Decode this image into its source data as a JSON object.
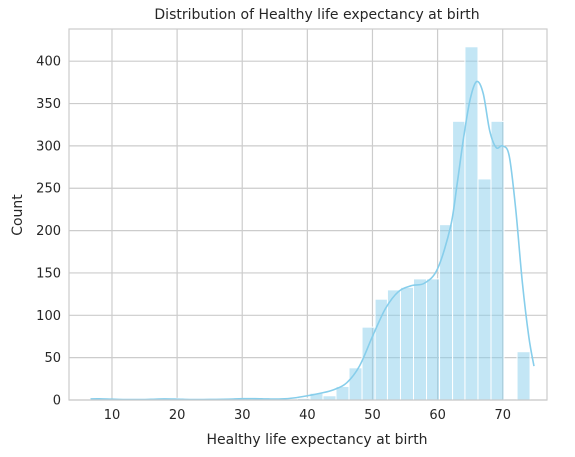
{
  "chart_data": {
    "type": "histogram",
    "title": "Distribution of Healthy life expectancy at birth",
    "xlabel": "Healthy life expectancy at birth",
    "ylabel": "Count",
    "xlim": [
      3.4,
      76.8
    ],
    "ylim": [
      0,
      438
    ],
    "x_ticks": [
      10,
      20,
      30,
      40,
      50,
      60,
      70
    ],
    "y_ticks": [
      0,
      50,
      100,
      150,
      200,
      250,
      300,
      350,
      400
    ],
    "grid": true,
    "bar_color": "#87ceeb",
    "kde_color": "#87ceeb",
    "bins": [
      {
        "x0": 6.7,
        "x1": 8.7,
        "count": 2
      },
      {
        "x0": 8.7,
        "x1": 10.7,
        "count": 0
      },
      {
        "x0": 10.7,
        "x1": 12.7,
        "count": 0
      },
      {
        "x0": 12.7,
        "x1": 14.6,
        "count": 0
      },
      {
        "x0": 14.6,
        "x1": 16.6,
        "count": 0
      },
      {
        "x0": 16.6,
        "x1": 18.6,
        "count": 1
      },
      {
        "x0": 18.6,
        "x1": 20.6,
        "count": 2
      },
      {
        "x0": 20.6,
        "x1": 22.6,
        "count": 0
      },
      {
        "x0": 22.6,
        "x1": 24.6,
        "count": 0
      },
      {
        "x0": 24.6,
        "x1": 26.6,
        "count": 1
      },
      {
        "x0": 26.6,
        "x1": 28.5,
        "count": 0
      },
      {
        "x0": 28.5,
        "x1": 30.5,
        "count": 1
      },
      {
        "x0": 30.5,
        "x1": 32.5,
        "count": 2
      },
      {
        "x0": 32.5,
        "x1": 34.5,
        "count": 1
      },
      {
        "x0": 34.5,
        "x1": 36.5,
        "count": 0
      },
      {
        "x0": 36.5,
        "x1": 38.5,
        "count": 0
      },
      {
        "x0": 38.5,
        "x1": 40.4,
        "count": 2
      },
      {
        "x0": 40.4,
        "x1": 42.4,
        "count": 8
      },
      {
        "x0": 42.4,
        "x1": 44.4,
        "count": 5
      },
      {
        "x0": 44.4,
        "x1": 46.4,
        "count": 16
      },
      {
        "x0": 46.4,
        "x1": 48.4,
        "count": 38
      },
      {
        "x0": 48.4,
        "x1": 50.4,
        "count": 86
      },
      {
        "x0": 50.4,
        "x1": 52.3,
        "count": 119
      },
      {
        "x0": 52.3,
        "x1": 54.3,
        "count": 130
      },
      {
        "x0": 54.3,
        "x1": 56.3,
        "count": 133
      },
      {
        "x0": 56.3,
        "x1": 58.3,
        "count": 143
      },
      {
        "x0": 58.3,
        "x1": 60.3,
        "count": 143
      },
      {
        "x0": 60.3,
        "x1": 62.3,
        "count": 207
      },
      {
        "x0": 62.3,
        "x1": 64.2,
        "count": 329
      },
      {
        "x0": 64.2,
        "x1": 66.2,
        "count": 417
      },
      {
        "x0": 66.2,
        "x1": 68.2,
        "count": 261
      },
      {
        "x0": 68.2,
        "x1": 70.2,
        "count": 329
      },
      {
        "x0": 70.2,
        "x1": 72.2,
        "count": 0
      },
      {
        "x0": 72.2,
        "x1": 74.2,
        "count": 57
      }
    ],
    "kde": [
      {
        "x": 6.7,
        "y": 1.3
      },
      {
        "x": 8,
        "y": 1.4
      },
      {
        "x": 10,
        "y": 1.0
      },
      {
        "x": 12,
        "y": 0.6
      },
      {
        "x": 14,
        "y": 0.5
      },
      {
        "x": 16,
        "y": 0.8
      },
      {
        "x": 18,
        "y": 1.2
      },
      {
        "x": 20,
        "y": 1.0
      },
      {
        "x": 22,
        "y": 0.6
      },
      {
        "x": 24,
        "y": 0.6
      },
      {
        "x": 26,
        "y": 0.7
      },
      {
        "x": 28,
        "y": 1.0
      },
      {
        "x": 30,
        "y": 1.5
      },
      {
        "x": 32,
        "y": 1.6
      },
      {
        "x": 34,
        "y": 1.2
      },
      {
        "x": 36,
        "y": 1.2
      },
      {
        "x": 38,
        "y": 2.5
      },
      {
        "x": 40,
        "y": 5
      },
      {
        "x": 42,
        "y": 8
      },
      {
        "x": 44,
        "y": 12
      },
      {
        "x": 46,
        "y": 20
      },
      {
        "x": 48,
        "y": 40
      },
      {
        "x": 50,
        "y": 75
      },
      {
        "x": 52,
        "y": 108
      },
      {
        "x": 54,
        "y": 128
      },
      {
        "x": 56,
        "y": 135
      },
      {
        "x": 58,
        "y": 138
      },
      {
        "x": 60,
        "y": 155
      },
      {
        "x": 62,
        "y": 205
      },
      {
        "x": 63,
        "y": 255
      },
      {
        "x": 64,
        "y": 310
      },
      {
        "x": 65,
        "y": 355
      },
      {
        "x": 66,
        "y": 376
      },
      {
        "x": 67,
        "y": 362
      },
      {
        "x": 68,
        "y": 318
      },
      {
        "x": 69,
        "y": 298
      },
      {
        "x": 70,
        "y": 300
      },
      {
        "x": 71,
        "y": 288
      },
      {
        "x": 72,
        "y": 225
      },
      {
        "x": 73,
        "y": 140
      },
      {
        "x": 74,
        "y": 75
      },
      {
        "x": 74.8,
        "y": 40
      }
    ]
  }
}
